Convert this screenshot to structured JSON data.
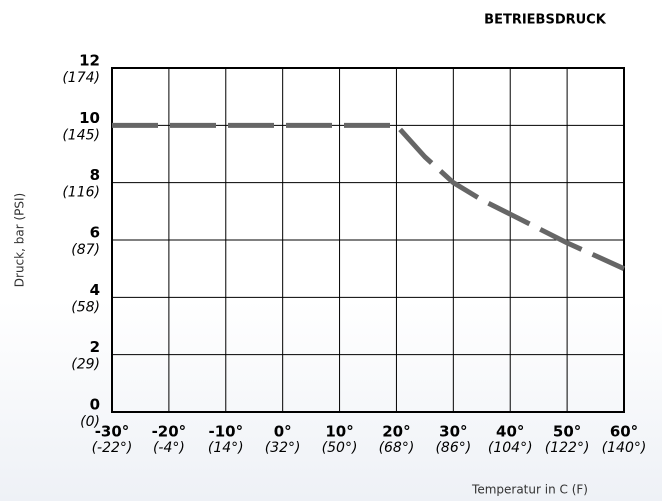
{
  "chart_data": {
    "type": "line",
    "title": "BETRIEBSDRUCK",
    "y_label": "Druck, bar (PSI)",
    "x_label": "Temperatur in C (F)",
    "x": [
      -30,
      20,
      25,
      30,
      35,
      40,
      45,
      50,
      55,
      60
    ],
    "series": [
      {
        "name": "Betriebsdruck",
        "color": "#666666",
        "values": [
          10,
          10,
          8.9,
          8,
          7.4,
          6.9,
          6.4,
          5.9,
          5.45,
          5
        ]
      }
    ],
    "xlim": [
      -30,
      60
    ],
    "xticks": [
      {
        "value": -30,
        "label": "-30°",
        "alt_label": "(-22°)"
      },
      {
        "value": -20,
        "label": "-20°",
        "alt_label": "(-4°)"
      },
      {
        "value": -10,
        "label": "-10°",
        "alt_label": "(14°)"
      },
      {
        "value": 0,
        "label": "0°",
        "alt_label": "(32°)"
      },
      {
        "value": 10,
        "label": "10°",
        "alt_label": "(50°)"
      },
      {
        "value": 20,
        "label": "20°",
        "alt_label": "(68°)"
      },
      {
        "value": 30,
        "label": "30°",
        "alt_label": "(86°)"
      },
      {
        "value": 40,
        "label": "40°",
        "alt_label": "(104°)"
      },
      {
        "value": 50,
        "label": "50°",
        "alt_label": "(122°)"
      },
      {
        "value": 60,
        "label": "60°",
        "alt_label": "(140°)"
      }
    ],
    "ylim": [
      0,
      12
    ],
    "yticks": [
      {
        "value": 0,
        "label": "0",
        "alt_label": "(0)"
      },
      {
        "value": 2,
        "label": "2",
        "alt_label": "(29)"
      },
      {
        "value": 4,
        "label": "4",
        "alt_label": "(58)"
      },
      {
        "value": 6,
        "label": "6",
        "alt_label": "(87)"
      },
      {
        "value": 8,
        "label": "8",
        "alt_label": "(116)"
      },
      {
        "value": 10,
        "label": "10",
        "alt_label": "(145)"
      },
      {
        "value": 12,
        "label": "12",
        "alt_label": "(174)"
      }
    ],
    "grid": true
  }
}
